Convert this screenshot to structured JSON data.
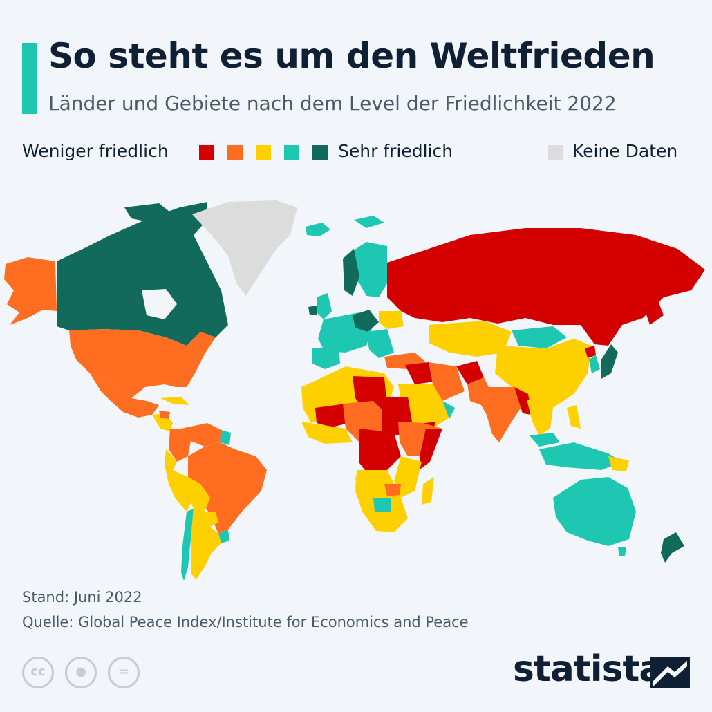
{
  "header": {
    "title": "So steht es um den Weltfrieden",
    "subtitle": "Länder und Gebiete nach dem Level der Friedlichkeit 2022"
  },
  "legend": {
    "less_label": "Weniger friedlich",
    "more_label": "Sehr friedlich",
    "nodata_label": "Keine Daten",
    "scale": [
      {
        "level": 1,
        "color": "#d40000"
      },
      {
        "level": 2,
        "color": "#ff6e20"
      },
      {
        "level": 3,
        "color": "#ffd000"
      },
      {
        "level": 4,
        "color": "#1ec7b2"
      },
      {
        "level": 5,
        "color": "#126b5a"
      }
    ],
    "nodata_color": "#dcdcdc"
  },
  "footer": {
    "stand": "Stand: Juni 2022",
    "quelle": "Quelle: Global Peace Index/Institute for Economics and Peace"
  },
  "brand": {
    "name": "statista"
  },
  "license_icons": [
    "cc-icon",
    "by-icon",
    "nd-icon"
  ],
  "colors": {
    "accent": "#1ec7b2",
    "ocean": "#f2f5f9",
    "title": "#0f2034"
  }
}
